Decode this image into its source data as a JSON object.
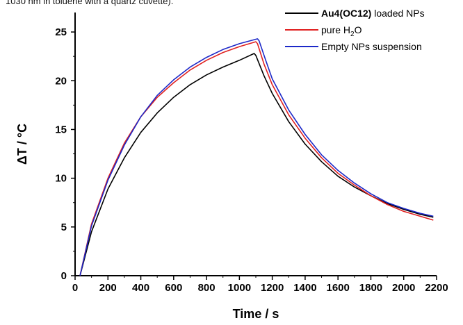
{
  "caption_fragment": "1030 nm in toluene with a quartz cuvette).",
  "chart_data": {
    "type": "line",
    "xlabel": "Time / s",
    "ylabel": "ΔT / °C",
    "xlim": [
      0,
      2200
    ],
    "ylim": [
      0,
      27
    ],
    "x_ticks": [
      0,
      200,
      400,
      600,
      800,
      1000,
      1200,
      1400,
      1600,
      1800,
      2000,
      2200
    ],
    "y_ticks": [
      0,
      5,
      10,
      15,
      20,
      25
    ],
    "grid": false,
    "legend_position": "top-right",
    "series": [
      {
        "name": "Au4(OC12) loaded NPs",
        "name_bold_part": "Au4(OC12)",
        "name_rest": " loaded NPs",
        "color": "#000000",
        "x": [
          30,
          100,
          200,
          300,
          400,
          500,
          600,
          700,
          800,
          900,
          1000,
          1090,
          1100,
          1150,
          1200,
          1300,
          1400,
          1500,
          1600,
          1700,
          1800,
          1900,
          2000,
          2100,
          2180
        ],
        "y": [
          0,
          4.5,
          8.9,
          12.1,
          14.7,
          16.7,
          18.3,
          19.6,
          20.6,
          21.4,
          22.1,
          22.8,
          22.6,
          20.5,
          18.7,
          15.8,
          13.5,
          11.7,
          10.2,
          9.1,
          8.2,
          7.4,
          6.8,
          6.3,
          6.0
        ]
      },
      {
        "name": "pure H2O",
        "name_main": "pure H",
        "name_sub": "2",
        "name_tail": "O",
        "color": "#e02020",
        "x": [
          30,
          100,
          200,
          300,
          400,
          500,
          600,
          700,
          800,
          900,
          1000,
          1100,
          1110,
          1150,
          1200,
          1300,
          1400,
          1500,
          1600,
          1700,
          1800,
          1900,
          2000,
          2100,
          2180
        ],
        "y": [
          0,
          5.3,
          10.0,
          13.6,
          16.3,
          18.3,
          19.8,
          21.1,
          22.1,
          22.9,
          23.5,
          24.0,
          23.8,
          21.7,
          19.6,
          16.5,
          14.1,
          12.1,
          10.5,
          9.3,
          8.2,
          7.3,
          6.6,
          6.1,
          5.7
        ]
      },
      {
        "name": "Empty NPs suspension",
        "color": "#1c28c8",
        "x": [
          30,
          100,
          200,
          300,
          400,
          500,
          600,
          700,
          800,
          900,
          1000,
          1110,
          1120,
          1160,
          1200,
          1300,
          1400,
          1500,
          1600,
          1700,
          1800,
          1900,
          2000,
          2100,
          2180
        ],
        "y": [
          0,
          5.1,
          9.8,
          13.4,
          16.3,
          18.5,
          20.1,
          21.4,
          22.4,
          23.2,
          23.8,
          24.3,
          24.1,
          22.1,
          20.2,
          17.0,
          14.5,
          12.4,
          10.8,
          9.5,
          8.4,
          7.5,
          6.9,
          6.4,
          6.1
        ]
      }
    ]
  }
}
